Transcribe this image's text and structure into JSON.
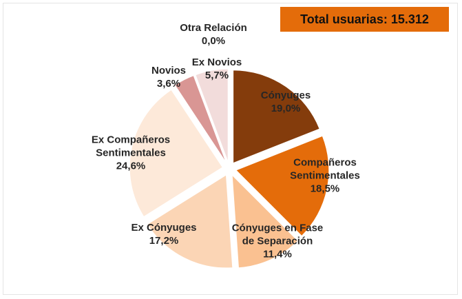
{
  "chart_data": {
    "type": "pie",
    "annotation": "Total usuarias: 15.312",
    "categories": [
      "Cónyuges",
      "Compañeros Sentimentales",
      "Cónyuges en Fase de Separación",
      "Ex Cónyuges",
      "Ex Compañeros Sentimentales",
      "Novios",
      "Ex Novios",
      "Otra Relación"
    ],
    "values": [
      19.0,
      18.5,
      11.4,
      17.2,
      24.6,
      3.6,
      5.7,
      0.0
    ],
    "value_labels": [
      "19,0%",
      "18,5%",
      "11,4%",
      "17,2%",
      "24,6%",
      "3,6%",
      "5,7%",
      "0,0%"
    ],
    "colors": [
      "#843C0C",
      "#E46C0A",
      "#FAC191",
      "#FBD5B5",
      "#FDE9D9",
      "#D99694",
      "#F2DCDB",
      "#EEEEEE"
    ]
  }
}
